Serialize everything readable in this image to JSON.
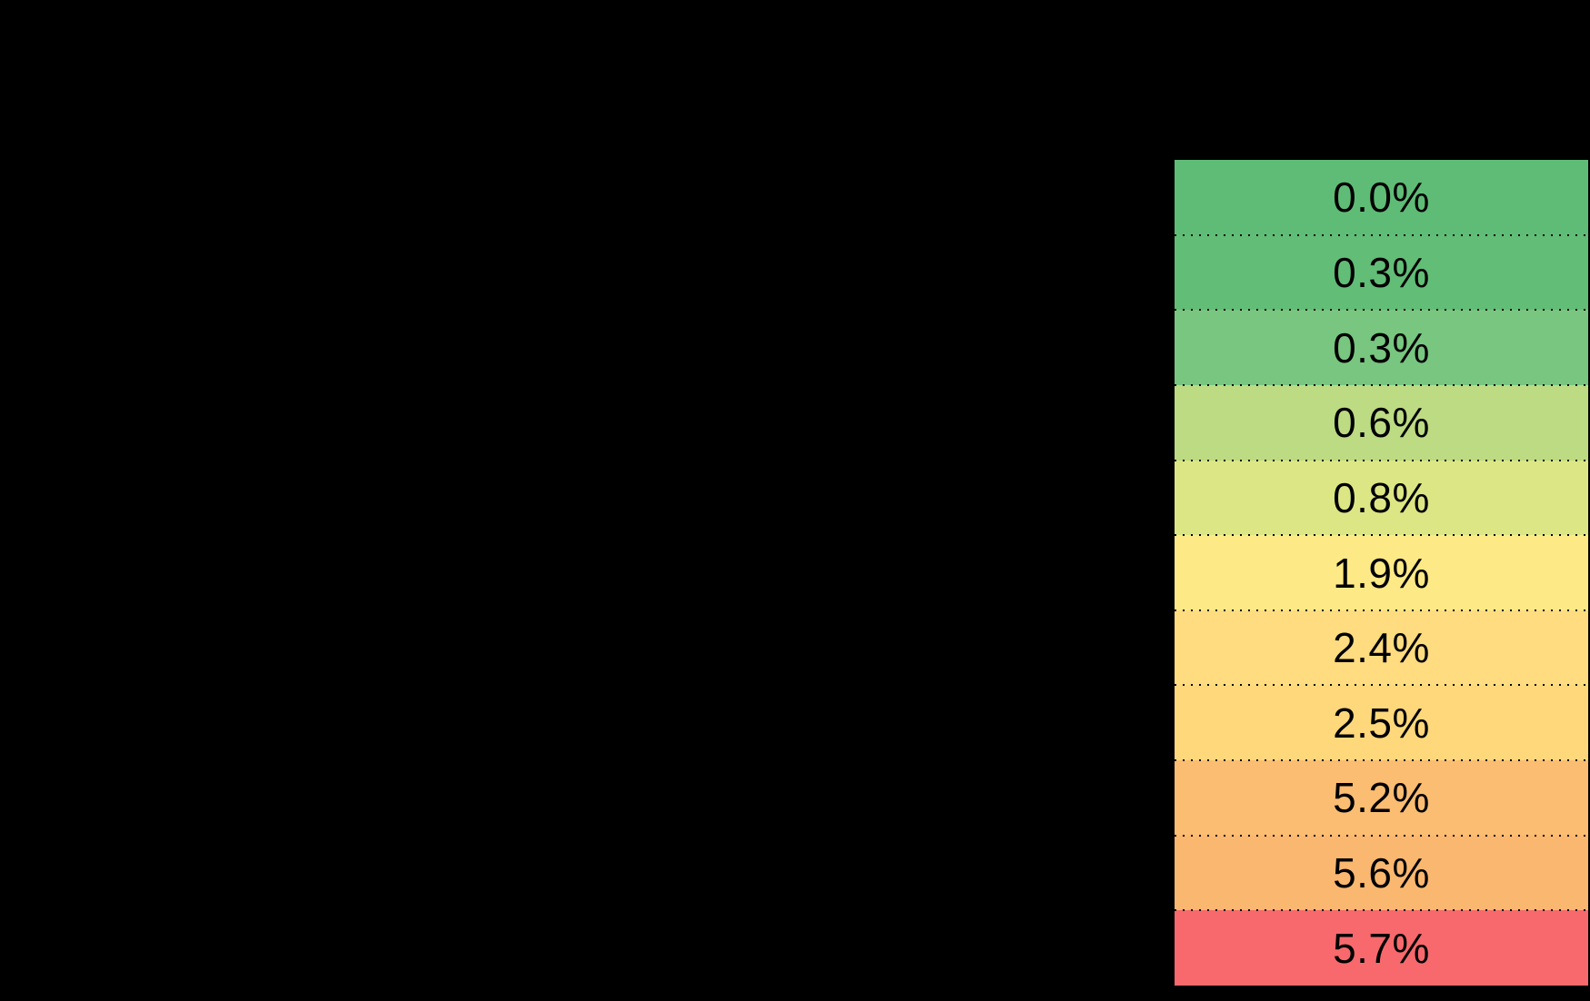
{
  "canvas": {
    "background_color": "#000000"
  },
  "chart_data": {
    "type": "heatmap",
    "title": "",
    "description": "Single vertical column of table cells with percentage values, color-scaled from green (low) through yellow/orange to red (high), separated by black dotted gridlines on a black background",
    "colormap": "green-yellow-orange-red (RdYlGn reversed)",
    "grid": "dotted black row separators; dotted top/left/right outer border; no bottom border",
    "legend_position": "none",
    "text_color": "#000000",
    "border_color": "#000000",
    "values": [
      0.0,
      0.3,
      0.3,
      0.6,
      0.8,
      1.9,
      2.4,
      2.5,
      5.2,
      5.6,
      5.7
    ],
    "labels": [
      "0.0%",
      "0.3%",
      "0.3%",
      "0.6%",
      "0.8%",
      "1.9%",
      "2.4%",
      "2.5%",
      "5.2%",
      "5.6%",
      "5.7%"
    ],
    "rows": [
      {
        "label": "0.0%",
        "value": 0.0,
        "color": "#5fbc76"
      },
      {
        "label": "0.3%",
        "value": 0.3,
        "color": "#62bd77"
      },
      {
        "label": "0.3%",
        "value": 0.3,
        "color": "#78c67f"
      },
      {
        "label": "0.6%",
        "value": 0.6,
        "color": "#bcdb82"
      },
      {
        "label": "0.8%",
        "value": 0.8,
        "color": "#dde684"
      },
      {
        "label": "1.9%",
        "value": 1.9,
        "color": "#fde986"
      },
      {
        "label": "2.4%",
        "value": 2.4,
        "color": "#fedc7f"
      },
      {
        "label": "2.5%",
        "value": 2.5,
        "color": "#fed87b"
      },
      {
        "label": "5.2%",
        "value": 5.2,
        "color": "#fbbd72"
      },
      {
        "label": "5.6%",
        "value": 5.6,
        "color": "#fab76f"
      },
      {
        "label": "5.7%",
        "value": 5.7,
        "color": "#f7696c"
      }
    ]
  }
}
